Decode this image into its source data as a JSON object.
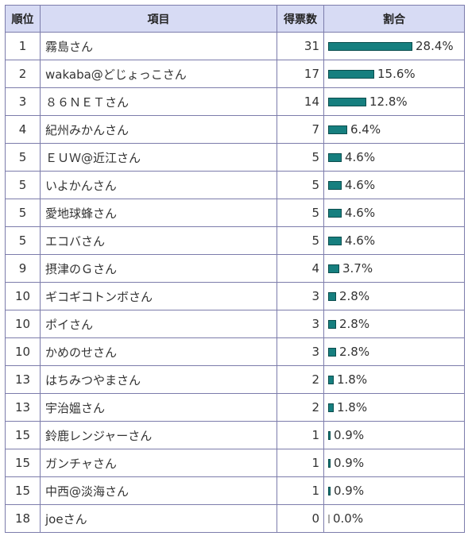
{
  "header": {
    "rank": "順位",
    "item": "項目",
    "votes": "得票数",
    "ratio": "割合"
  },
  "accent_color": "#167f7f",
  "header_bg": "#d7dbf4",
  "border_color": "#7c7cab",
  "rows": [
    {
      "rank": "1",
      "name": "霧島さん",
      "votes": "31",
      "pct": "28.4%",
      "fraction": 0.284
    },
    {
      "rank": "2",
      "name": "wakaba@どじょっこさん",
      "votes": "17",
      "pct": "15.6%",
      "fraction": 0.156
    },
    {
      "rank": "3",
      "name": "８６ＮＥＴさん",
      "votes": "14",
      "pct": "12.8%",
      "fraction": 0.128
    },
    {
      "rank": "4",
      "name": "紀州みかんさん",
      "votes": "7",
      "pct": "6.4%",
      "fraction": 0.064
    },
    {
      "rank": "5",
      "name": "ＥＵＷ@近江さん",
      "votes": "5",
      "pct": "4.6%",
      "fraction": 0.046
    },
    {
      "rank": "5",
      "name": "いよかんさん",
      "votes": "5",
      "pct": "4.6%",
      "fraction": 0.046
    },
    {
      "rank": "5",
      "name": "愛地球蜂さん",
      "votes": "5",
      "pct": "4.6%",
      "fraction": 0.046
    },
    {
      "rank": "5",
      "name": "エコバさん",
      "votes": "5",
      "pct": "4.6%",
      "fraction": 0.046
    },
    {
      "rank": "9",
      "name": "摂津のＧさん",
      "votes": "4",
      "pct": "3.7%",
      "fraction": 0.037
    },
    {
      "rank": "10",
      "name": "ギコギコトンボさん",
      "votes": "3",
      "pct": "2.8%",
      "fraction": 0.028
    },
    {
      "rank": "10",
      "name": "ポイさん",
      "votes": "3",
      "pct": "2.8%",
      "fraction": 0.028
    },
    {
      "rank": "10",
      "name": "かめのせさん",
      "votes": "3",
      "pct": "2.8%",
      "fraction": 0.028
    },
    {
      "rank": "13",
      "name": "はちみつやまさん",
      "votes": "2",
      "pct": "1.8%",
      "fraction": 0.018
    },
    {
      "rank": "13",
      "name": "宇治媼さん",
      "votes": "2",
      "pct": "1.8%",
      "fraction": 0.018
    },
    {
      "rank": "15",
      "name": "鈴鹿レンジャーさん",
      "votes": "1",
      "pct": "0.9%",
      "fraction": 0.009
    },
    {
      "rank": "15",
      "name": "ガンチャさん",
      "votes": "1",
      "pct": "0.9%",
      "fraction": 0.009
    },
    {
      "rank": "15",
      "name": "中西@淡海さん",
      "votes": "1",
      "pct": "0.9%",
      "fraction": 0.009
    },
    {
      "rank": "18",
      "name": "joeさん",
      "votes": "0",
      "pct": "0.0%",
      "fraction": 0.0
    }
  ]
}
